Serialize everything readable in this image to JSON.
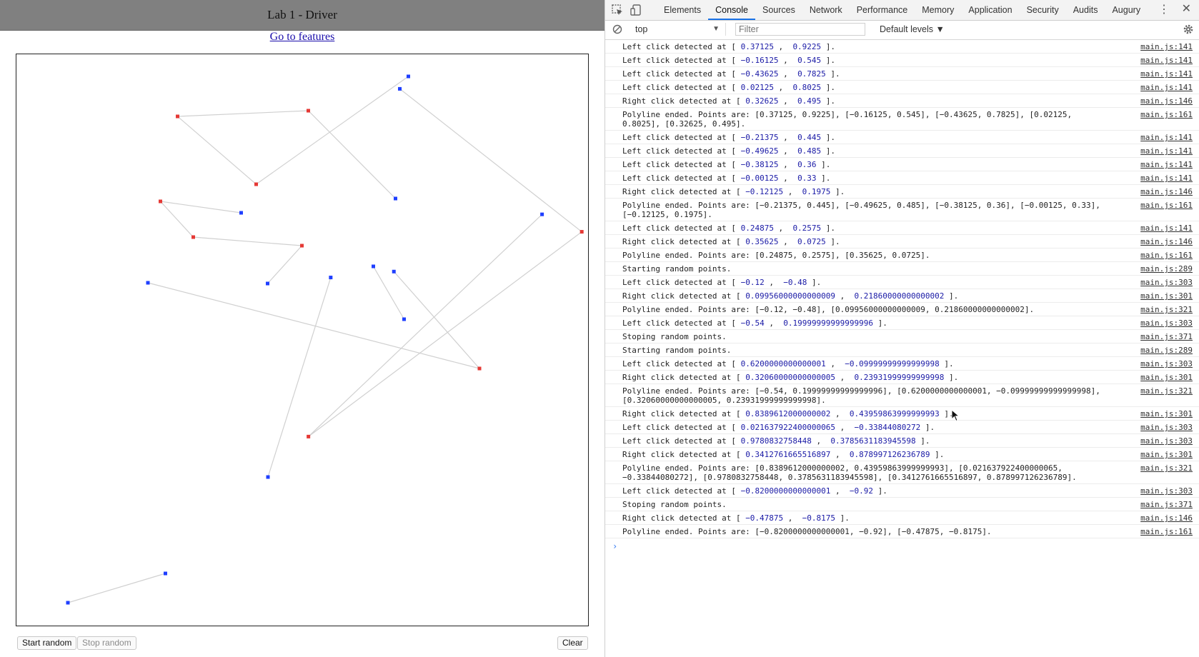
{
  "page": {
    "title": "Lab 1 - Driver",
    "features_link": "Go to features",
    "buttons": {
      "start": "Start random",
      "stop": "Stop random",
      "clear": "Clear"
    },
    "canvas": {
      "x_range": [
        -1,
        1
      ],
      "y_range": [
        -1,
        1
      ],
      "colors": {
        "line": "#d0d0d0",
        "red": "#e53935",
        "blue": "#1f3fff"
      },
      "polylines": [
        [
          [
            0.37125,
            0.9225
          ],
          [
            -0.16125,
            0.545
          ],
          [
            -0.43625,
            0.7825
          ],
          [
            0.02125,
            0.8025
          ],
          [
            0.32625,
            0.495
          ]
        ],
        [
          [
            -0.21375,
            0.445
          ],
          [
            -0.49625,
            0.485
          ],
          [
            -0.38125,
            0.36
          ],
          [
            -0.00125,
            0.33
          ],
          [
            -0.12125,
            0.1975
          ]
        ],
        [
          [
            0.24875,
            0.2575
          ],
          [
            0.35625,
            0.0725
          ]
        ],
        [
          [
            -0.12,
            -0.48
          ],
          [
            0.0996,
            0.2186
          ]
        ],
        [
          [
            -0.54,
            0.2
          ],
          [
            0.62,
            -0.1
          ],
          [
            0.3206,
            0.2393
          ]
        ],
        [
          [
            0.839,
            0.4396
          ],
          [
            0.0216,
            -0.3384
          ],
          [
            0.978,
            0.3786
          ],
          [
            0.3413,
            0.879
          ]
        ],
        [
          [
            -0.82,
            -0.92
          ],
          [
            -0.47875,
            -0.8175
          ]
        ]
      ],
      "points": [
        {
          "x": 0.37125,
          "y": 0.9225,
          "c": "blue"
        },
        {
          "x": -0.16125,
          "y": 0.545,
          "c": "red"
        },
        {
          "x": -0.43625,
          "y": 0.7825,
          "c": "red"
        },
        {
          "x": 0.02125,
          "y": 0.8025,
          "c": "red"
        },
        {
          "x": 0.32625,
          "y": 0.495,
          "c": "blue"
        },
        {
          "x": -0.21375,
          "y": 0.445,
          "c": "blue"
        },
        {
          "x": -0.49625,
          "y": 0.485,
          "c": "red"
        },
        {
          "x": -0.38125,
          "y": 0.36,
          "c": "red"
        },
        {
          "x": -0.00125,
          "y": 0.33,
          "c": "red"
        },
        {
          "x": -0.12125,
          "y": 0.1975,
          "c": "blue"
        },
        {
          "x": 0.24875,
          "y": 0.2575,
          "c": "blue"
        },
        {
          "x": 0.35625,
          "y": 0.0725,
          "c": "blue"
        },
        {
          "x": -0.12,
          "y": -0.48,
          "c": "blue"
        },
        {
          "x": 0.0996,
          "y": 0.2186,
          "c": "blue"
        },
        {
          "x": -0.54,
          "y": 0.2,
          "c": "blue"
        },
        {
          "x": 0.62,
          "y": -0.1,
          "c": "red"
        },
        {
          "x": 0.3206,
          "y": 0.2393,
          "c": "blue"
        },
        {
          "x": 0.839,
          "y": 0.4396,
          "c": "blue"
        },
        {
          "x": 0.0216,
          "y": -0.3384,
          "c": "red"
        },
        {
          "x": 0.978,
          "y": 0.3786,
          "c": "red"
        },
        {
          "x": 0.3413,
          "y": 0.879,
          "c": "blue"
        },
        {
          "x": -0.82,
          "y": -0.92,
          "c": "blue"
        },
        {
          "x": -0.47875,
          "y": -0.8175,
          "c": "blue"
        }
      ]
    }
  },
  "devtools": {
    "tabs": [
      "Elements",
      "Console",
      "Sources",
      "Network",
      "Performance",
      "Memory",
      "Application",
      "Security",
      "Audits",
      "Augury"
    ],
    "active_tab": "Console",
    "icons": [
      "inspect-icon",
      "device-toggle-icon",
      "kebab-menu-icon",
      "close-icon",
      "clear-console-icon",
      "settings-icon"
    ],
    "context": "top",
    "filter_placeholder": "Filter",
    "levels": "Default levels ▼",
    "prompt": "›",
    "logs": [
      {
        "t": "click",
        "kind": "Left",
        "a": "0.37125",
        "b": "0.9225",
        "src": "main.js:141"
      },
      {
        "t": "click",
        "kind": "Left",
        "a": "-0.16125",
        "b": "0.545",
        "src": "main.js:141"
      },
      {
        "t": "click",
        "kind": "Left",
        "a": "-0.43625",
        "b": "0.7825",
        "src": "main.js:141"
      },
      {
        "t": "click",
        "kind": "Left",
        "a": "0.02125",
        "b": "0.8025",
        "src": "main.js:141"
      },
      {
        "t": "click",
        "kind": "Right",
        "a": "0.32625",
        "b": "0.495",
        "src": "main.js:146"
      },
      {
        "t": "text",
        "text": "Polyline ended. Points are: [0.37125, 0.9225], [-0.16125, 0.545], [-0.43625, 0.7825], [0.02125, 0.8025], [0.32625, 0.495].",
        "src": "main.js:161"
      },
      {
        "t": "click",
        "kind": "Left",
        "a": "-0.21375",
        "b": "0.445",
        "src": "main.js:141"
      },
      {
        "t": "click",
        "kind": "Left",
        "a": "-0.49625",
        "b": "0.485",
        "src": "main.js:141"
      },
      {
        "t": "click",
        "kind": "Left",
        "a": "-0.38125",
        "b": "0.36",
        "src": "main.js:141"
      },
      {
        "t": "click",
        "kind": "Left",
        "a": "-0.00125",
        "b": "0.33",
        "src": "main.js:141"
      },
      {
        "t": "click",
        "kind": "Right",
        "a": "-0.12125",
        "b": "0.1975",
        "src": "main.js:146"
      },
      {
        "t": "text",
        "text": "Polyline ended. Points are: [-0.21375, 0.445], [-0.49625, 0.485], [-0.38125, 0.36], [-0.00125, 0.33], [-0.12125, 0.1975].",
        "src": "main.js:161"
      },
      {
        "t": "click",
        "kind": "Left",
        "a": "0.24875",
        "b": "0.2575",
        "src": "main.js:141"
      },
      {
        "t": "click",
        "kind": "Right",
        "a": "0.35625",
        "b": "0.0725",
        "src": "main.js:146"
      },
      {
        "t": "text",
        "text": "Polyline ended. Points are: [0.24875, 0.2575], [0.35625, 0.0725].",
        "src": "main.js:161"
      },
      {
        "t": "text",
        "text": "Starting random points.",
        "src": "main.js:289"
      },
      {
        "t": "click",
        "kind": "Left",
        "a": "-0.12",
        "b": "-0.48",
        "src": "main.js:303"
      },
      {
        "t": "click",
        "kind": "Right",
        "a": "0.09956000000000009",
        "b": "0.21860000000000002",
        "src": "main.js:301"
      },
      {
        "t": "text",
        "text": "Polyline ended. Points are: [-0.12, -0.48], [0.09956000000000009, 0.21860000000000002].",
        "src": "main.js:321"
      },
      {
        "t": "click",
        "kind": "Left",
        "a": "-0.54",
        "b": "0.19999999999999996",
        "src": "main.js:303"
      },
      {
        "t": "text",
        "text": "Stoping random points.",
        "src": "main.js:371"
      },
      {
        "t": "text",
        "text": "Starting random points.",
        "src": "main.js:289"
      },
      {
        "t": "click",
        "kind": "Left",
        "a": "0.6200000000000001",
        "b": "-0.09999999999999998",
        "src": "main.js:303"
      },
      {
        "t": "click",
        "kind": "Right",
        "a": "0.32060000000000005",
        "b": "0.23931999999999998",
        "src": "main.js:301"
      },
      {
        "t": "text",
        "text": "Polyline ended. Points are: [-0.54, 0.19999999999999996], [0.6200000000000001, -0.09999999999999998], [0.32060000000000005, 0.23931999999999998].",
        "src": "main.js:321"
      },
      {
        "t": "click",
        "kind": "Right",
        "a": "0.8389612000000002",
        "b": "0.43959863999999993",
        "src": "main.js:301"
      },
      {
        "t": "click",
        "kind": "Left",
        "a": "0.021637922400000065",
        "b": "-0.33844080272",
        "src": "main.js:303"
      },
      {
        "t": "click",
        "kind": "Left",
        "a": "0.9780832758448",
        "b": "0.3785631183945598",
        "src": "main.js:303"
      },
      {
        "t": "click",
        "kind": "Right",
        "a": "0.3412761665516897",
        "b": "0.878997126236789",
        "src": "main.js:301"
      },
      {
        "t": "text",
        "text": "Polyline ended. Points are: [0.8389612000000002, 0.43959863999999993], [0.021637922400000065, -0.33844080272], [0.9780832758448, 0.3785631183945598], [0.3412761665516897, 0.878997126236789].",
        "src": "main.js:321"
      },
      {
        "t": "click",
        "kind": "Left",
        "a": "-0.8200000000000001",
        "b": "-0.92",
        "src": "main.js:303"
      },
      {
        "t": "text",
        "text": "Stoping random points.",
        "src": "main.js:371"
      },
      {
        "t": "click",
        "kind": "Right",
        "a": "-0.47875",
        "b": "-0.8175",
        "src": "main.js:146"
      },
      {
        "t": "text",
        "text": "Polyline ended. Points are: [-0.8200000000000001, -0.92], [-0.47875, -0.8175].",
        "src": "main.js:161"
      }
    ]
  }
}
